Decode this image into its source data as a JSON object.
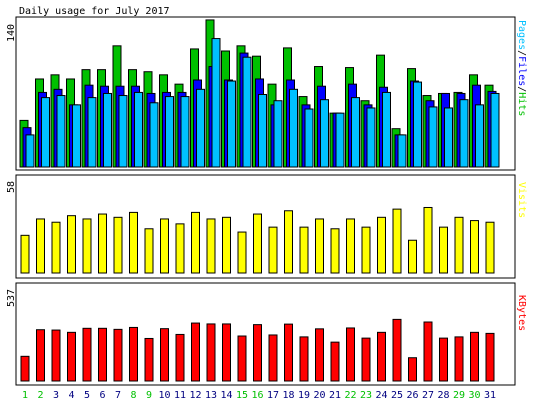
{
  "chart_data": [
    {
      "type": "bar",
      "title": "Daily usage for July 2017",
      "ylabel": "Pages/Files/Hits",
      "ylabel_parts": [
        "Pages",
        "Files",
        "Hits"
      ],
      "ylim": [
        0,
        140
      ],
      "ymax_label": "140",
      "categories": [
        "1",
        "2",
        "3",
        "4",
        "5",
        "6",
        "7",
        "8",
        "9",
        "10",
        "11",
        "12",
        "13",
        "14",
        "15",
        "16",
        "17",
        "18",
        "19",
        "20",
        "21",
        "22",
        "23",
        "24",
        "25",
        "26",
        "27",
        "28",
        "29",
        "30",
        "31"
      ],
      "weekend_days": [
        1,
        2,
        8,
        9,
        15,
        16,
        22,
        23,
        29,
        30
      ],
      "series": [
        {
          "name": "Hits",
          "color": "#00c000",
          "values": [
            45,
            85,
            89,
            85,
            94,
            94,
            117,
            94,
            92,
            89,
            80,
            114,
            142,
            112,
            117,
            107,
            80,
            115,
            68,
            97,
            52,
            96,
            64,
            108,
            37,
            95,
            69,
            71,
            72,
            89,
            79
          ]
        },
        {
          "name": "Files",
          "color": "#0000ff",
          "values": [
            38,
            72,
            75,
            60,
            79,
            78,
            78,
            78,
            71,
            72,
            72,
            84,
            97,
            84,
            110,
            85,
            60,
            84,
            60,
            78,
            52,
            80,
            60,
            77,
            31,
            83,
            64,
            71,
            71,
            79,
            73
          ]
        },
        {
          "name": "Pages",
          "color": "#00c0ff",
          "values": [
            31,
            67,
            69,
            60,
            67,
            71,
            69,
            72,
            62,
            68,
            68,
            75,
            124,
            83,
            106,
            70,
            64,
            75,
            56,
            65,
            52,
            67,
            57,
            72,
            31,
            82,
            58,
            57,
            65,
            60,
            71
          ]
        }
      ]
    },
    {
      "type": "bar",
      "ylabel": "Visits",
      "ylim": [
        0,
        58
      ],
      "ymax_label": "58",
      "categories": [
        "1",
        "2",
        "3",
        "4",
        "5",
        "6",
        "7",
        "8",
        "9",
        "10",
        "11",
        "12",
        "13",
        "14",
        "15",
        "16",
        "17",
        "18",
        "19",
        "20",
        "21",
        "22",
        "23",
        "24",
        "25",
        "26",
        "27",
        "28",
        "29",
        "30",
        "31"
      ],
      "series": [
        {
          "name": "Visits",
          "color": "#ffff00",
          "values": [
            23,
            33,
            31,
            35,
            33,
            36,
            34,
            37,
            27,
            33,
            30,
            37,
            33,
            34,
            25,
            36,
            28,
            38,
            28,
            33,
            27,
            33,
            28,
            34,
            39,
            20,
            40,
            28,
            34,
            32,
            31
          ]
        }
      ]
    },
    {
      "type": "bar",
      "ylabel": "KBytes",
      "ylim": [
        0,
        537
      ],
      "ymax_label": "537",
      "categories": [
        "1",
        "2",
        "3",
        "4",
        "5",
        "6",
        "7",
        "8",
        "9",
        "10",
        "11",
        "12",
        "13",
        "14",
        "15",
        "16",
        "17",
        "18",
        "19",
        "20",
        "21",
        "22",
        "23",
        "24",
        "25",
        "26",
        "27",
        "28",
        "29",
        "30",
        "31"
      ],
      "series": [
        {
          "name": "KBytes",
          "color": "#ff0000",
          "values": [
            141,
            293,
            291,
            278,
            301,
            301,
            295,
            306,
            243,
            299,
            266,
            331,
            326,
            326,
            257,
            322,
            263,
            325,
            252,
            298,
            222,
            303,
            245,
            278,
            352,
            133,
            337,
            245,
            252,
            278,
            272
          ]
        }
      ]
    }
  ],
  "colors": {
    "weekday_label": "#000080",
    "weekend_label": "#00c000",
    "border": "#000000"
  }
}
